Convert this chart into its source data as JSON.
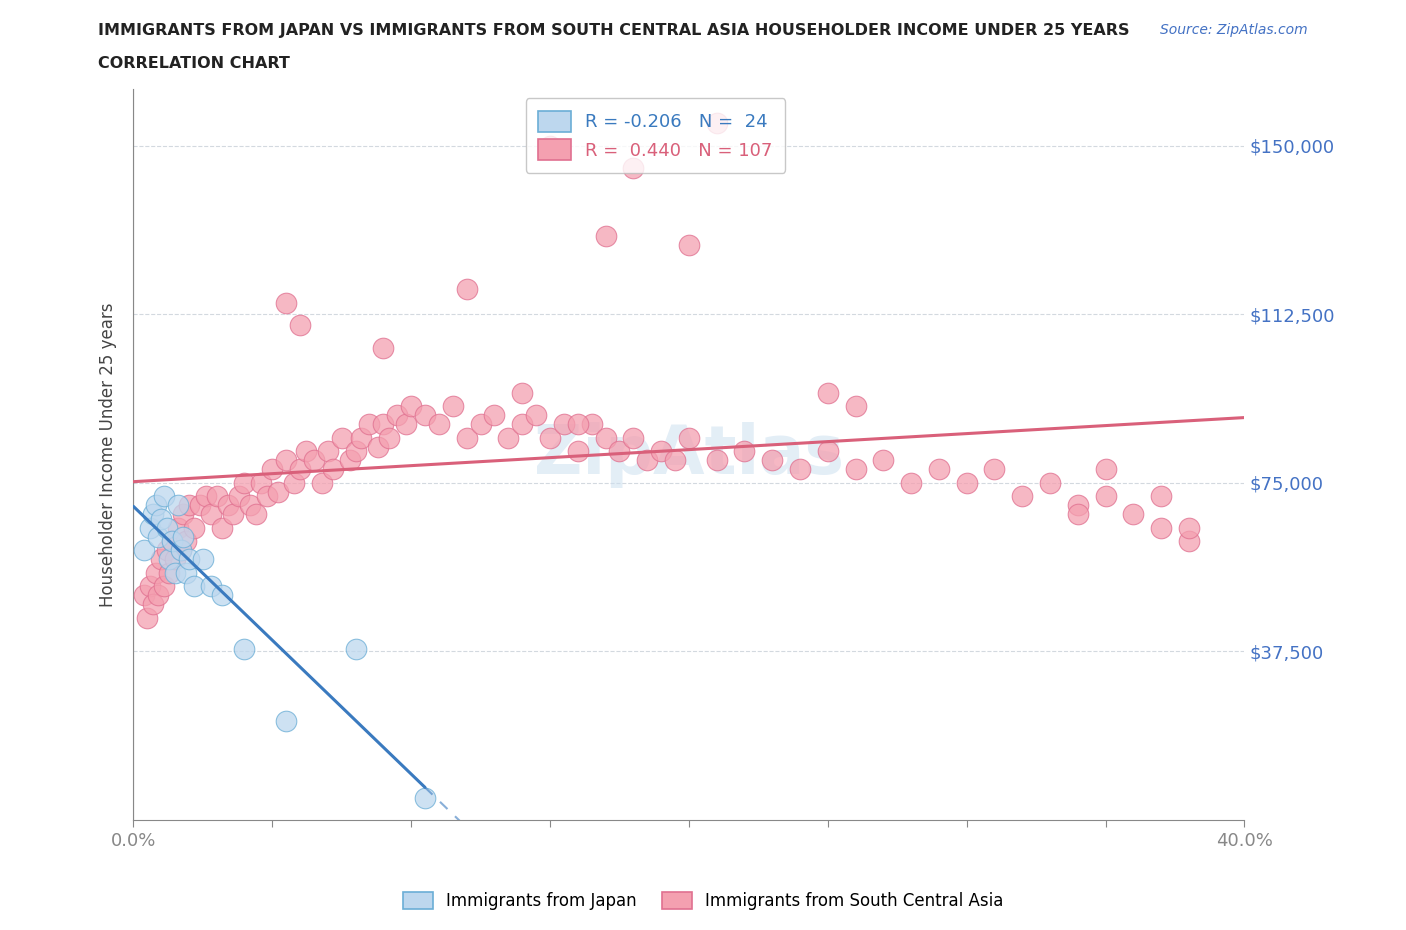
{
  "title_line1": "IMMIGRANTS FROM JAPAN VS IMMIGRANTS FROM SOUTH CENTRAL ASIA HOUSEHOLDER INCOME UNDER 25 YEARS",
  "title_line2": "CORRELATION CHART",
  "source_text": "Source: ZipAtlas.com",
  "ylabel": "Householder Income Under 25 years",
  "xlim": [
    0.0,
    0.4
  ],
  "ylim": [
    0,
    162500
  ],
  "yticks": [
    0,
    37500,
    75000,
    112500,
    150000
  ],
  "xticks": [
    0.0,
    0.05,
    0.1,
    0.15,
    0.2,
    0.25,
    0.3,
    0.35,
    0.4
  ],
  "japan_R": -0.206,
  "japan_N": 24,
  "sca_R": 0.44,
  "sca_N": 107,
  "japan_color": "#6baed6",
  "japan_color_light": "#bdd7ee",
  "sca_color": "#f4a0b0",
  "sca_color_dark": "#e07090",
  "japan_line_color": "#3a7abf",
  "sca_line_color": "#d9607a",
  "background_color": "#ffffff",
  "watermark_text": "ZipAtlas",
  "japan_x": [
    0.004,
    0.006,
    0.007,
    0.008,
    0.009,
    0.01,
    0.011,
    0.012,
    0.013,
    0.014,
    0.015,
    0.016,
    0.017,
    0.018,
    0.019,
    0.02,
    0.022,
    0.025,
    0.028,
    0.032,
    0.04,
    0.055,
    0.08,
    0.105
  ],
  "japan_y": [
    60000,
    65000,
    68000,
    70000,
    63000,
    67000,
    72000,
    65000,
    58000,
    62000,
    55000,
    70000,
    60000,
    63000,
    55000,
    58000,
    52000,
    58000,
    52000,
    50000,
    38000,
    22000,
    38000,
    5000
  ],
  "sca_x": [
    0.004,
    0.005,
    0.006,
    0.007,
    0.008,
    0.009,
    0.01,
    0.011,
    0.012,
    0.013,
    0.014,
    0.015,
    0.016,
    0.017,
    0.018,
    0.019,
    0.02,
    0.022,
    0.024,
    0.026,
    0.028,
    0.03,
    0.032,
    0.034,
    0.036,
    0.038,
    0.04,
    0.042,
    0.044,
    0.046,
    0.048,
    0.05,
    0.052,
    0.055,
    0.058,
    0.06,
    0.062,
    0.065,
    0.068,
    0.07,
    0.072,
    0.075,
    0.078,
    0.08,
    0.082,
    0.085,
    0.088,
    0.09,
    0.092,
    0.095,
    0.098,
    0.1,
    0.105,
    0.11,
    0.115,
    0.12,
    0.125,
    0.13,
    0.135,
    0.14,
    0.145,
    0.15,
    0.155,
    0.16,
    0.165,
    0.17,
    0.175,
    0.18,
    0.185,
    0.19,
    0.195,
    0.2,
    0.21,
    0.22,
    0.23,
    0.24,
    0.25,
    0.26,
    0.27,
    0.28,
    0.29,
    0.3,
    0.31,
    0.32,
    0.33,
    0.34,
    0.35,
    0.36,
    0.37,
    0.38,
    0.055,
    0.06,
    0.09,
    0.12,
    0.15,
    0.18,
    0.21,
    0.17,
    0.2,
    0.38,
    0.37,
    0.35,
    0.34,
    0.25,
    0.26,
    0.14,
    0.16
  ],
  "sca_y": [
    50000,
    45000,
    52000,
    48000,
    55000,
    50000,
    58000,
    52000,
    60000,
    55000,
    62000,
    58000,
    65000,
    60000,
    68000,
    62000,
    70000,
    65000,
    70000,
    72000,
    68000,
    72000,
    65000,
    70000,
    68000,
    72000,
    75000,
    70000,
    68000,
    75000,
    72000,
    78000,
    73000,
    80000,
    75000,
    78000,
    82000,
    80000,
    75000,
    82000,
    78000,
    85000,
    80000,
    82000,
    85000,
    88000,
    83000,
    88000,
    85000,
    90000,
    88000,
    92000,
    90000,
    88000,
    92000,
    85000,
    88000,
    90000,
    85000,
    88000,
    90000,
    85000,
    88000,
    82000,
    88000,
    85000,
    82000,
    85000,
    80000,
    82000,
    80000,
    85000,
    80000,
    82000,
    80000,
    78000,
    82000,
    78000,
    80000,
    75000,
    78000,
    75000,
    78000,
    72000,
    75000,
    70000,
    72000,
    68000,
    65000,
    62000,
    115000,
    110000,
    105000,
    118000,
    150000,
    145000,
    155000,
    130000,
    128000,
    65000,
    72000,
    78000,
    68000,
    95000,
    92000,
    95000,
    88000
  ]
}
